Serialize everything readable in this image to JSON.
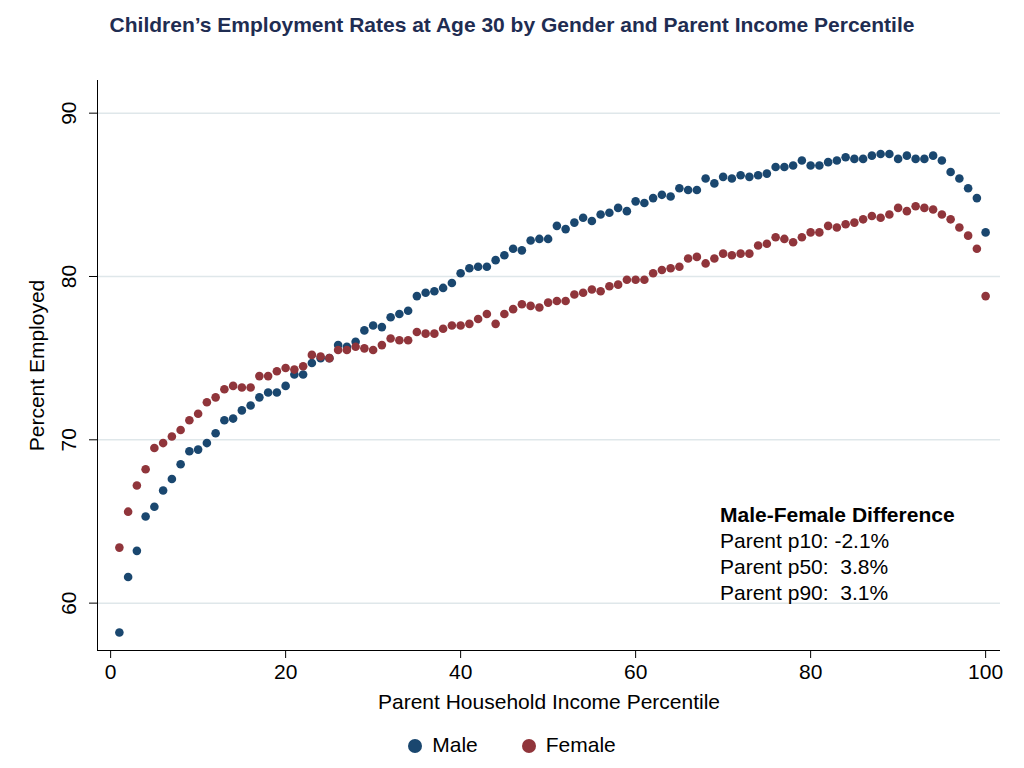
{
  "chart_data": {
    "type": "scatter",
    "title": "Children’s Employment Rates at Age 30 by Gender and Parent Income Percentile",
    "x_label": "Parent Household Income Percentile",
    "y_label": "Percent Employed",
    "x": [
      1,
      2,
      3,
      4,
      5,
      6,
      7,
      8,
      9,
      10,
      11,
      12,
      13,
      14,
      15,
      16,
      17,
      18,
      19,
      20,
      21,
      22,
      23,
      24,
      25,
      26,
      27,
      28,
      29,
      30,
      31,
      32,
      33,
      34,
      35,
      36,
      37,
      38,
      39,
      40,
      41,
      42,
      43,
      44,
      45,
      46,
      47,
      48,
      49,
      50,
      51,
      52,
      53,
      54,
      55,
      56,
      57,
      58,
      59,
      60,
      61,
      62,
      63,
      64,
      65,
      66,
      67,
      68,
      69,
      70,
      71,
      72,
      73,
      74,
      75,
      76,
      77,
      78,
      79,
      80,
      81,
      82,
      83,
      84,
      85,
      86,
      87,
      88,
      89,
      90,
      91,
      92,
      93,
      94,
      95,
      96,
      97,
      98,
      99,
      100
    ],
    "series": [
      {
        "name": "Male",
        "color": "#1a476f",
        "marker": "circle",
        "values": [
          58.2,
          61.6,
          63.2,
          65.3,
          65.9,
          66.9,
          67.6,
          68.5,
          69.3,
          69.4,
          69.8,
          70.4,
          71.2,
          71.3,
          71.8,
          72.1,
          72.6,
          72.9,
          72.9,
          73.3,
          74.0,
          74.0,
          74.7,
          75.0,
          75.0,
          75.8,
          75.7,
          76.0,
          76.7,
          77.0,
          76.9,
          77.5,
          77.7,
          77.9,
          78.8,
          79.0,
          79.1,
          79.3,
          79.6,
          80.2,
          80.5,
          80.6,
          80.6,
          81.0,
          81.3,
          81.7,
          81.6,
          82.2,
          82.3,
          82.3,
          83.1,
          82.9,
          83.3,
          83.6,
          83.4,
          83.8,
          83.9,
          84.2,
          84.0,
          84.6,
          84.5,
          84.8,
          85.0,
          84.9,
          85.4,
          85.3,
          85.3,
          86.0,
          85.7,
          86.1,
          86.0,
          86.2,
          86.1,
          86.2,
          86.3,
          86.7,
          86.7,
          86.8,
          87.1,
          86.8,
          86.8,
          87.0,
          87.1,
          87.3,
          87.2,
          87.2,
          87.4,
          87.5,
          87.5,
          87.2,
          87.4,
          87.2,
          87.2,
          87.4,
          87.1,
          86.4,
          86.0,
          85.4,
          84.8,
          82.7
        ]
      },
      {
        "name": "Female",
        "color": "#90353b",
        "marker": "circle",
        "values": [
          63.4,
          65.6,
          67.2,
          68.2,
          69.5,
          69.8,
          70.2,
          70.6,
          71.2,
          71.6,
          72.3,
          72.6,
          73.1,
          73.3,
          73.2,
          73.2,
          73.9,
          73.9,
          74.2,
          74.4,
          74.3,
          74.5,
          75.2,
          75.1,
          75.0,
          75.5,
          75.5,
          75.7,
          75.6,
          75.5,
          75.8,
          76.2,
          76.1,
          76.1,
          76.6,
          76.5,
          76.5,
          76.8,
          77.0,
          77.0,
          77.1,
          77.4,
          77.7,
          77.1,
          77.7,
          78.0,
          78.3,
          78.2,
          78.1,
          78.4,
          78.5,
          78.5,
          78.9,
          79.0,
          79.2,
          79.1,
          79.4,
          79.5,
          79.8,
          79.8,
          79.8,
          80.2,
          80.4,
          80.5,
          80.6,
          81.1,
          81.2,
          80.8,
          81.1,
          81.4,
          81.3,
          81.4,
          81.4,
          81.9,
          82.0,
          82.4,
          82.3,
          82.1,
          82.4,
          82.7,
          82.7,
          83.1,
          83.0,
          83.2,
          83.3,
          83.5,
          83.7,
          83.6,
          83.8,
          84.2,
          84.0,
          84.3,
          84.2,
          84.1,
          83.8,
          83.5,
          83.0,
          82.5,
          81.7,
          78.8
        ]
      }
    ],
    "xlim": [
      -1.5,
      101.7
    ],
    "ylim": [
      57.1,
      92
    ],
    "xticks": [
      0,
      20,
      40,
      60,
      80,
      100
    ],
    "yticks": [
      60,
      70,
      80,
      90
    ],
    "grid": true,
    "legend": "bottom",
    "annotations": [
      {
        "title": "Male-Female Difference",
        "lines": [
          "Parent p10: -2.1%",
          "Parent p50:  3.8%",
          "Parent p90:  3.1%"
        ]
      }
    ]
  }
}
